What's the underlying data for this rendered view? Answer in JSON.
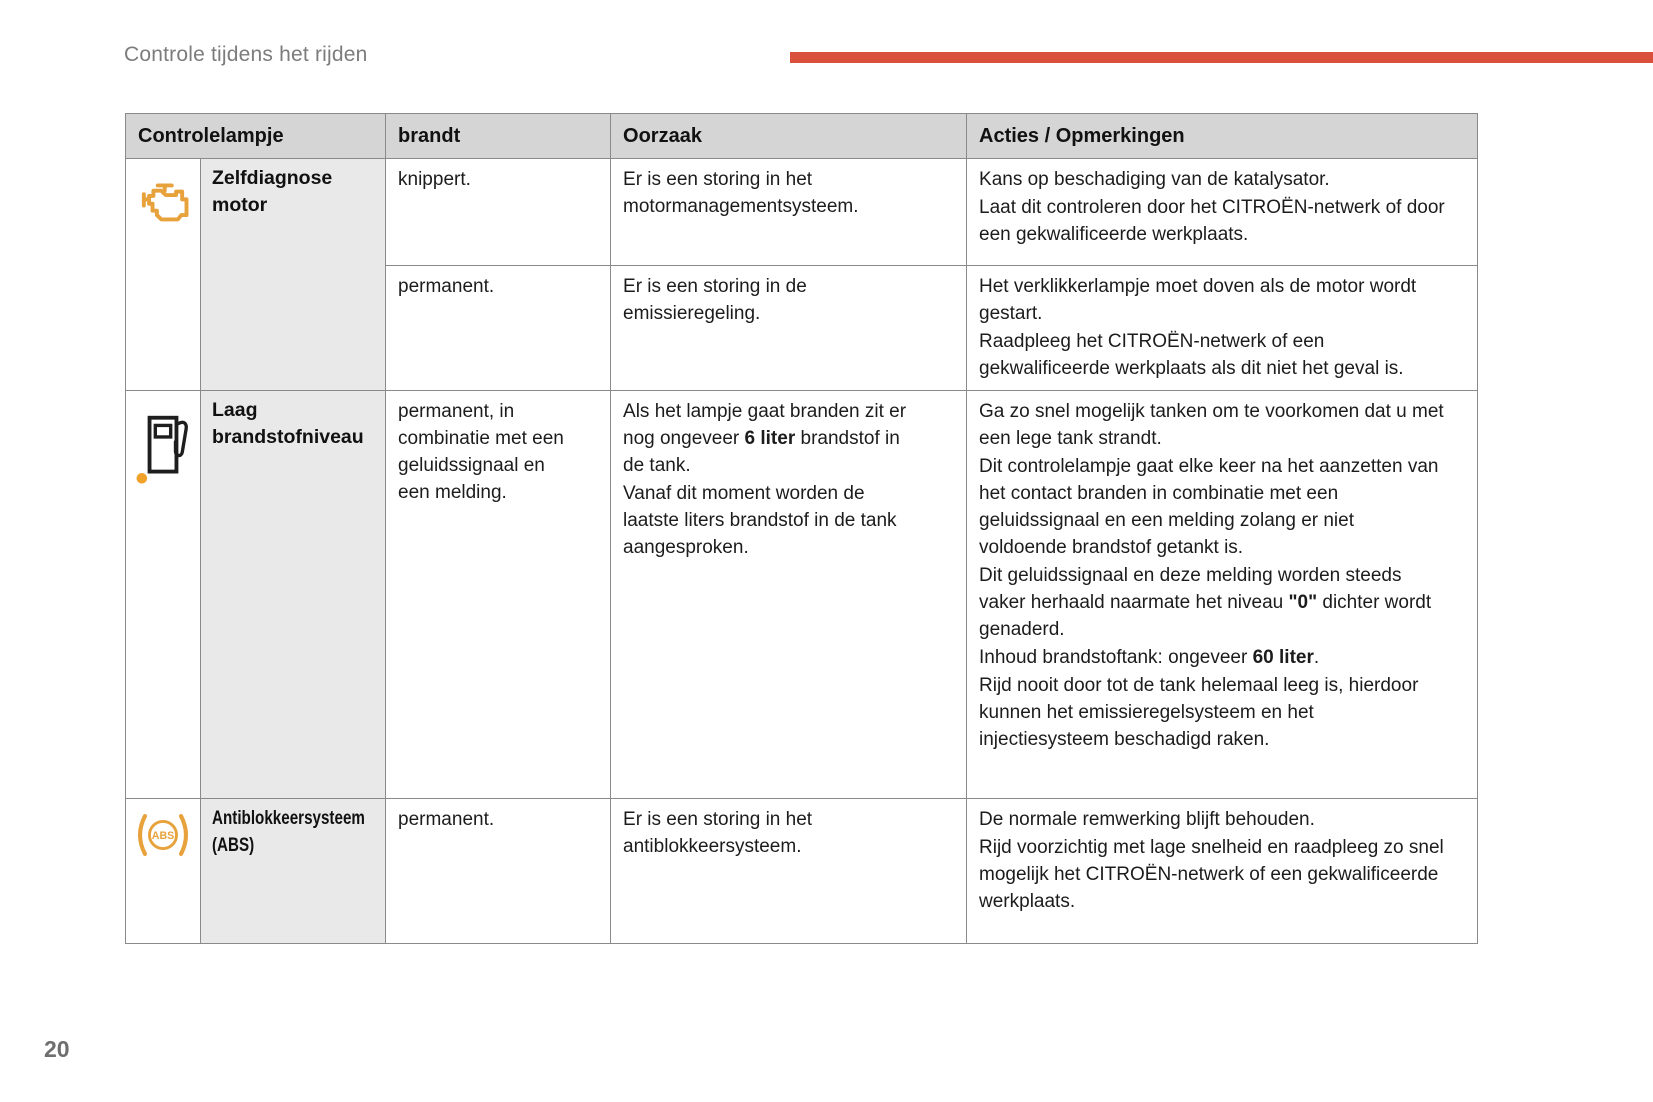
{
  "page": {
    "title": "Controle tijdens het rijden",
    "page_number": "20"
  },
  "colors": {
    "accent_red": "#d9503c",
    "warning_amber": "#e8a23c",
    "fuel_dot_orange": "#f0a22b",
    "header_bg": "#d5d5d5",
    "label_col_bg": "#e9e9e9",
    "border_gray": "#8a8a8a",
    "title_gray": "#7c7c7c"
  },
  "icons": {
    "engine": "engine-warning-icon",
    "fuel": "low-fuel-icon",
    "abs": "abs-warning-icon",
    "abs_label": "ABS"
  },
  "table": {
    "header": {
      "controlelampje": "Controlelampje",
      "brandt": "brandt",
      "oorzaak": "Oorzaak",
      "acties": "Acties / Opmerkingen"
    },
    "row1": {
      "label": "Zelfdiagnose motor",
      "sub1": {
        "brandt": "knippert.",
        "oorzaak": [
          "Er is een storing in het motormanagementsysteem."
        ],
        "acties": [
          "Kans op beschadiging van de katalysator.",
          "Laat dit controleren door het CITROËN-netwerk of door een gekwalificeerde werkplaats."
        ]
      },
      "sub2": {
        "brandt": "permanent.",
        "oorzaak": [
          "Er is een storing in de emissieregeling."
        ],
        "acties": [
          "Het verklikkerlampje moet doven als de motor wordt gestart.",
          "Raadpleeg het CITROËN-netwerk of een gekwalificeerde werkplaats als dit niet het geval is."
        ]
      }
    },
    "row2": {
      "label": "Laag brandstofniveau",
      "brandt": [
        "permanent, in combinatie met een geluidssignaal en een melding."
      ],
      "oorzaak": [
        "Als het lampje gaat branden zit er nog ongeveer **6 liter** brandstof in de tank.",
        "Vanaf dit moment worden de laatste liters brandstof in de tank aangesproken."
      ],
      "acties": [
        "Ga zo snel mogelijk tanken om te voorkomen dat u met een lege tank strandt.",
        "Dit controlelampje gaat elke keer na het aanzetten van het contact branden in combinatie met een geluidssignaal en een melding zolang er niet voldoende brandstof getankt is.",
        "Dit geluidssignaal en deze melding worden steeds vaker herhaald naarmate het niveau **\"0\"** dichter wordt genaderd.",
        "Inhoud brandstoftank: ongeveer **60 liter**.",
        "Rijd nooit door tot de tank helemaal leeg is, hierdoor kunnen het emissieregelsysteem en het injectiesysteem beschadigd raken."
      ]
    },
    "row3": {
      "label": "Antiblokkeersysteem (ABS)",
      "brandt": "permanent.",
      "oorzaak": [
        "Er is een storing in het antiblokkeersysteem."
      ],
      "acties": [
        "De normale remwerking blijft behouden.",
        "Rijd voorzichtig met lage snelheid en raadpleeg zo snel mogelijk het CITROËN-netwerk of een gekwalificeerde werkplaats."
      ]
    }
  }
}
